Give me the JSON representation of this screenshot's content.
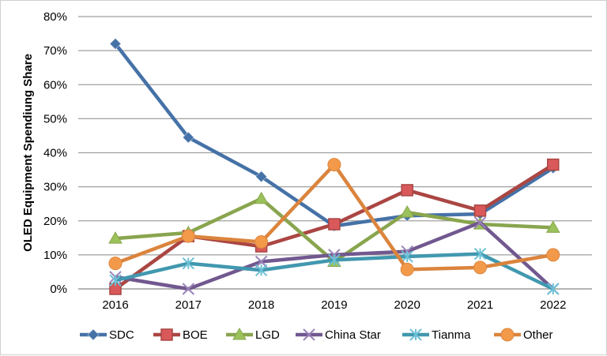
{
  "chart_data": {
    "type": "line",
    "title": "",
    "xlabel": "",
    "ylabel": "OLED Equipment Spendiung Share",
    "categories": [
      "2016",
      "2017",
      "2018",
      "2019",
      "2020",
      "2021",
      "2022"
    ],
    "ylim": [
      0,
      80
    ],
    "yticks": [
      "0%",
      "10%",
      "20%",
      "30%",
      "40%",
      "50%",
      "60%",
      "70%",
      "80%"
    ],
    "grid": true,
    "legend": "bottom",
    "series": [
      {
        "name": "SDC",
        "color": "#4572A7",
        "marker": "diamond",
        "values": [
          72,
          44.5,
          33,
          18.5,
          21.5,
          22,
          35.5
        ]
      },
      {
        "name": "BOE",
        "color": "#AA4643",
        "marker": "square",
        "values": [
          0,
          15.5,
          12.5,
          19,
          29,
          23,
          36.5
        ]
      },
      {
        "name": "LGD",
        "color": "#89A54E",
        "marker": "triangle",
        "values": [
          14.8,
          16.5,
          26.5,
          8,
          22.5,
          19,
          18
        ]
      },
      {
        "name": "China Star",
        "color": "#71588F",
        "marker": "x",
        "values": [
          3.5,
          0,
          8,
          10,
          11,
          19.5,
          0
        ]
      },
      {
        "name": "Tianma",
        "color": "#4198AF",
        "marker": "star",
        "values": [
          2.5,
          7.5,
          5.5,
          8.5,
          9.5,
          10.3,
          0
        ]
      },
      {
        "name": "Other",
        "color": "#DB843D",
        "marker": "circle",
        "values": [
          7.5,
          15.5,
          13.8,
          36.5,
          5.7,
          6.3,
          10
        ]
      }
    ]
  }
}
